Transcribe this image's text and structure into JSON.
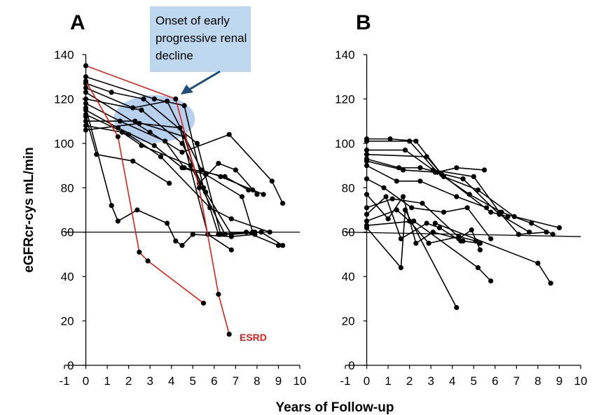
{
  "figure": {
    "ylabel": "eGFRcr-cys  mL/min",
    "xlabel": "Years of Follow-up"
  },
  "panels": [
    {
      "letter": "A"
    },
    {
      "letter": "B"
    }
  ],
  "annotation": {
    "lines": [
      "Onset of early",
      "progressive renal",
      "decline"
    ],
    "box_color": "#bcd7ee",
    "ellipse_color": "#a9c8ea",
    "arrow_color": "#1f4e79"
  },
  "esrd_label": "ESRD",
  "colors": {
    "normal": "#000000",
    "esrd": "#e0201c"
  },
  "chart_data": [
    {
      "type": "line",
      "panel": "A",
      "xlim": [
        -1,
        10
      ],
      "ylim": [
        0,
        140
      ],
      "xticks": [
        -1,
        0,
        1,
        2,
        3,
        4,
        5,
        6,
        7,
        8,
        9,
        10
      ],
      "yticks": [
        0,
        20,
        40,
        60,
        80,
        100,
        120,
        140
      ],
      "reference_line_y": 60,
      "series": [
        {
          "color": "#e0201c",
          "points": [
            [
              0,
              135
            ],
            [
              4.2,
              120
            ],
            [
              5.3,
              80
            ],
            [
              6.2,
              32
            ],
            [
              6.7,
              14
            ]
          ]
        },
        {
          "color": "#e0201c",
          "points": [
            [
              0,
              128
            ],
            [
              1.5,
              103
            ],
            [
              2.5,
              51
            ],
            [
              2.9,
              47
            ],
            [
              5.5,
              28
            ]
          ]
        },
        {
          "color": "#000000",
          "points": [
            [
              0,
              130
            ],
            [
              3.2,
              120
            ],
            [
              4.6,
              117
            ],
            [
              5.5,
              80
            ],
            [
              6.2,
              59
            ],
            [
              7.5,
              60
            ],
            [
              9.0,
              54
            ]
          ]
        },
        {
          "color": "#000000",
          "points": [
            [
              0,
              127
            ],
            [
              1.2,
              123
            ],
            [
              2.7,
              120
            ],
            [
              5.2,
              100
            ],
            [
              6.3,
              59
            ],
            [
              7.8,
              60
            ]
          ]
        },
        {
          "color": "#000000",
          "points": [
            [
              0,
              125
            ],
            [
              2.2,
              116
            ],
            [
              3.8,
              119
            ],
            [
              5.4,
              88
            ],
            [
              6.3,
              85
            ],
            [
              7.8,
              79
            ],
            [
              8.3,
              77
            ]
          ]
        },
        {
          "color": "#000000",
          "points": [
            [
              0,
              123
            ],
            [
              3.0,
              105
            ],
            [
              4.5,
              96
            ],
            [
              6.7,
              104
            ],
            [
              8.7,
              83
            ],
            [
              9.2,
              73
            ]
          ]
        },
        {
          "color": "#000000",
          "points": [
            [
              0,
              120
            ],
            [
              2.6,
              115
            ],
            [
              4.5,
              100
            ],
            [
              5.6,
              78
            ],
            [
              6.8,
              59
            ],
            [
              8.2,
              60
            ],
            [
              9.2,
              54
            ]
          ]
        },
        {
          "color": "#000000",
          "points": [
            [
              0,
              118
            ],
            [
              1.6,
              110
            ],
            [
              3.7,
              101
            ],
            [
              4.6,
              89
            ],
            [
              6.5,
              85
            ],
            [
              7.6,
              79
            ]
          ]
        },
        {
          "color": "#000000",
          "points": [
            [
              0,
              115
            ],
            [
              1.5,
              107
            ],
            [
              3.2,
              99
            ],
            [
              4.5,
              89
            ],
            [
              5.6,
              86
            ],
            [
              7.3,
              76
            ],
            [
              7.8,
              60
            ]
          ]
        },
        {
          "color": "#000000",
          "points": [
            [
              0,
              113
            ],
            [
              2.0,
              104
            ],
            [
              3.5,
              94
            ],
            [
              5.8,
              71
            ],
            [
              6.8,
              66
            ],
            [
              8.6,
              60
            ]
          ]
        },
        {
          "color": "#000000",
          "points": [
            [
              0,
              110
            ],
            [
              2.3,
              110
            ],
            [
              4.6,
              103
            ],
            [
              5.3,
              82
            ],
            [
              6.2,
              91
            ],
            [
              7.0,
              88
            ],
            [
              8.0,
              77
            ]
          ]
        },
        {
          "color": "#000000",
          "points": [
            [
              0,
              108
            ],
            [
              1.7,
              105
            ],
            [
              2.6,
              99
            ],
            [
              4.9,
              90
            ],
            [
              6.5,
              59
            ],
            [
              7.9,
              60
            ]
          ]
        },
        {
          "color": "#000000",
          "points": [
            [
              0,
              106
            ],
            [
              2.5,
              109
            ],
            [
              4.4,
              107
            ],
            [
              5.7,
              59
            ],
            [
              6.8,
              52
            ]
          ]
        },
        {
          "color": "#000000",
          "points": [
            [
              0,
              112
            ],
            [
              0.5,
              95
            ],
            [
              2.2,
              92
            ],
            [
              3.9,
              82
            ]
          ]
        },
        {
          "color": "#000000",
          "points": [
            [
              0,
              116
            ],
            [
              1.2,
              72
            ],
            [
              1.5,
              65
            ],
            [
              2.4,
              70
            ],
            [
              3.8,
              64
            ],
            [
              4.2,
              56
            ],
            [
              4.5,
              54
            ],
            [
              5.0,
              59
            ],
            [
              6.8,
              58
            ],
            [
              7.9,
              59
            ]
          ]
        }
      ]
    },
    {
      "type": "line",
      "panel": "B",
      "xlim": [
        -1,
        10
      ],
      "ylim": [
        0,
        140
      ],
      "xticks": [
        -1,
        0,
        1,
        2,
        3,
        4,
        5,
        6,
        7,
        8,
        9,
        10
      ],
      "yticks": [
        0,
        20,
        40,
        60,
        80,
        100,
        120,
        140
      ],
      "reference_line": [
        [
          -1,
          60
        ],
        [
          10,
          58
        ]
      ],
      "series": [
        {
          "color": "#000000",
          "points": [
            [
              0,
              102
            ],
            [
              1.1,
              102
            ],
            [
              2.3,
              101
            ],
            [
              3.5,
              86
            ],
            [
              5.8,
              69
            ],
            [
              6.6,
              67
            ]
          ]
        },
        {
          "color": "#000000",
          "points": [
            [
              0,
              101
            ],
            [
              2.0,
              101
            ],
            [
              3.3,
              87
            ],
            [
              4.8,
              77
            ],
            [
              6.3,
              69
            ],
            [
              7.7,
              64
            ],
            [
              8.7,
              59
            ]
          ]
        },
        {
          "color": "#000000",
          "points": [
            [
              0,
              97
            ],
            [
              1.8,
              97
            ],
            [
              3.1,
              88
            ],
            [
              5.0,
              85
            ],
            [
              6.2,
              69
            ],
            [
              7.1,
              59
            ],
            [
              8.4,
              60
            ]
          ]
        },
        {
          "color": "#000000",
          "points": [
            [
              0,
              95
            ],
            [
              2.8,
              94
            ],
            [
              3.6,
              85
            ],
            [
              5.2,
              79
            ],
            [
              6.9,
              67
            ],
            [
              9.0,
              62
            ]
          ]
        },
        {
          "color": "#000000",
          "points": [
            [
              0,
              93
            ],
            [
              1.5,
              89
            ],
            [
              2.5,
              89
            ],
            [
              3.3,
              87
            ],
            [
              4.2,
              89
            ],
            [
              5.5,
              88
            ]
          ]
        },
        {
          "color": "#000000",
          "points": [
            [
              0,
              92
            ],
            [
              1.7,
              88
            ],
            [
              3.2,
              87
            ],
            [
              4.5,
              84
            ],
            [
              6.2,
              68
            ],
            [
              7.6,
              60
            ]
          ]
        },
        {
          "color": "#000000",
          "points": [
            [
              0,
              90
            ],
            [
              1.4,
              83
            ],
            [
              2.5,
              83
            ],
            [
              4.2,
              76
            ],
            [
              5.6,
              71
            ]
          ]
        },
        {
          "color": "#000000",
          "points": [
            [
              0,
              84
            ],
            [
              0.8,
              80
            ],
            [
              2.1,
              71
            ],
            [
              3.6,
              69
            ],
            [
              4.7,
              71
            ],
            [
              5.8,
              57
            ]
          ]
        },
        {
          "color": "#000000",
          "points": [
            [
              0,
              77
            ],
            [
              1.0,
              66
            ],
            [
              1.7,
              76
            ],
            [
              2.3,
              55
            ],
            [
              3.1,
              60
            ],
            [
              4.3,
              57
            ],
            [
              4.9,
              61
            ],
            [
              5.3,
              52
            ]
          ]
        },
        {
          "color": "#000000",
          "points": [
            [
              0,
              71
            ],
            [
              1.2,
              75
            ],
            [
              2.6,
              73
            ],
            [
              4.5,
              56
            ],
            [
              5.3,
              55
            ]
          ]
        },
        {
          "color": "#000000",
          "points": [
            [
              0,
              68
            ],
            [
              0.9,
              76
            ],
            [
              1.6,
              57
            ],
            [
              2.8,
              64
            ],
            [
              3.4,
              62
            ],
            [
              4.4,
              56
            ]
          ]
        },
        {
          "color": "#000000",
          "points": [
            [
              0,
              65
            ],
            [
              1.4,
              70
            ],
            [
              2.0,
              65
            ],
            [
              2.9,
              55
            ],
            [
              4.3,
              58
            ],
            [
              5.1,
              56
            ]
          ]
        },
        {
          "color": "#000000",
          "points": [
            [
              0,
              62
            ],
            [
              1.6,
              44
            ],
            [
              1.8,
              70
            ],
            [
              4.2,
              26
            ]
          ]
        },
        {
          "color": "#000000",
          "points": [
            [
              0,
              63
            ],
            [
              2.2,
              65
            ],
            [
              5.2,
              44
            ],
            [
              5.8,
              38
            ]
          ]
        },
        {
          "color": "#000000",
          "points": [
            [
              3.2,
              64
            ],
            [
              8.0,
              46
            ],
            [
              8.6,
              37
            ]
          ]
        }
      ]
    }
  ]
}
